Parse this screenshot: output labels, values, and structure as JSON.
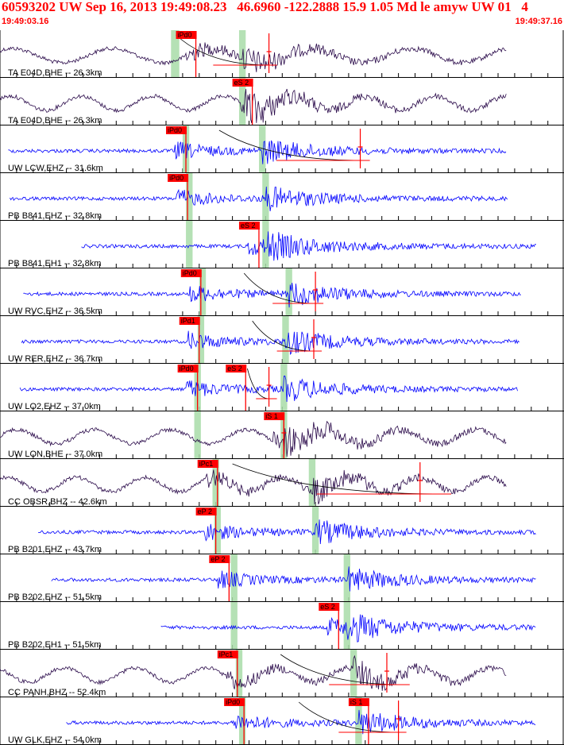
{
  "header": {
    "title": "60593202 UW Sep 16, 2013 19:49:08.23   46.6960 -122.2888 15.9 1.05 Md le amyw UW 01   4",
    "start_time": "19:49:03.16",
    "end_time": "19:49:37.16"
  },
  "colors": {
    "header_text": "#ff0000",
    "trace_short_period": "#0000ff",
    "trace_broadband": "#2a0a4a",
    "pick_box": "#ff0000",
    "pick_window": "#a8dca8",
    "coda_curve": "#000000",
    "grid": "#000000"
  },
  "chart_data": {
    "type": "seismogram",
    "time_window_s": [
      0,
      34
    ],
    "traces": [
      {
        "label": "TA E04D,BHE -- 26.3km",
        "dist_km": 26.3,
        "instrument": "broadband",
        "picks": [
          {
            "name": "iPd0",
            "t": 10.6
          }
        ],
        "windows": [
          [
            10.3,
            10.8
          ],
          [
            14.4,
            14.8
          ]
        ],
        "coda": {
          "start": 10.6,
          "end": 16.2
        },
        "amp_marker": 16.2
      },
      {
        "label": "TA E04D,BHE -- 26.3km",
        "dist_km": 26.3,
        "instrument": "broadband",
        "picks": [
          {
            "name": "eS 2",
            "t": 14.0
          }
        ],
        "windows": [
          [
            14.4,
            14.8
          ]
        ],
        "coda": null,
        "amp_marker": null
      },
      {
        "label": "UW LCW,EHZ -- 31.6km",
        "dist_km": 31.6,
        "instrument": "short-period",
        "picks": [
          {
            "name": "iPd0",
            "t": 10.0
          }
        ],
        "windows": [
          [
            11.0,
            11.4
          ],
          [
            15.6,
            16.0
          ]
        ],
        "coda": {
          "start": 13.2,
          "end": 21.8
        },
        "amp_marker": 21.7
      },
      {
        "label": "PB B841,EHZ -- 32.8km",
        "dist_km": 32.8,
        "instrument": "short-period",
        "picks": [
          {
            "name": "iPd0",
            "t": 10.1
          }
        ],
        "windows": [
          [
            11.2,
            11.6
          ],
          [
            15.8,
            16.2
          ]
        ],
        "coda": null,
        "amp_marker": null
      },
      {
        "label": "PB B841,EH1 -- 32.8km",
        "dist_km": 32.8,
        "instrument": "short-period",
        "picks": [
          {
            "name": "eS 2",
            "t": 14.4
          }
        ],
        "windows": [
          [
            11.2,
            11.6
          ],
          [
            15.8,
            16.2
          ]
        ],
        "coda": null,
        "amp_marker": null
      },
      {
        "label": "UW RVC,EHZ -- 36.5km",
        "dist_km": 36.5,
        "instrument": "short-period",
        "picks": [
          {
            "name": "iPd0",
            "t": 10.9
          }
        ],
        "windows": [
          [
            12.0,
            12.4
          ],
          [
            17.2,
            17.6
          ]
        ],
        "coda": {
          "start": 14.7,
          "end": 19.0
        },
        "amp_marker": 19.0
      },
      {
        "label": "UW RER,EHZ -- 36.7km",
        "dist_km": 36.7,
        "instrument": "short-period",
        "picks": [
          {
            "name": "iPd1",
            "t": 10.8
          }
        ],
        "windows": [
          [
            11.9,
            12.3
          ],
          [
            17.0,
            17.4
          ]
        ],
        "coda": {
          "start": 15.2,
          "end": 18.9
        },
        "amp_marker": 18.9
      },
      {
        "label": "UW LO2,EHZ -- 37.0km",
        "dist_km": 37.0,
        "instrument": "short-period",
        "picks": [
          {
            "name": "iPd0",
            "t": 10.7
          },
          {
            "name": "eS 2",
            "t": 13.6
          }
        ],
        "windows": [
          [
            11.7,
            12.1
          ],
          [
            16.9,
            17.3
          ]
        ],
        "coda": {
          "start": 14.9,
          "end": 16.2
        },
        "amp_marker": 16.2
      },
      {
        "label": "UW LON,BHE -- 37.0km",
        "dist_km": 37.0,
        "instrument": "broadband",
        "picks": [
          {
            "name": "iS 1",
            "t": 15.9
          }
        ],
        "windows": [
          [
            11.7,
            12.1
          ],
          [
            16.9,
            17.3
          ]
        ],
        "coda": null,
        "amp_marker": 17.1
      },
      {
        "label": "CC OBSR,BHZ -- 42.6km",
        "dist_km": 42.6,
        "instrument": "broadband",
        "picks": [
          {
            "name": "iPc1",
            "t": 11.9
          }
        ],
        "windows": [
          [
            12.8,
            13.2
          ],
          [
            18.6,
            19.0
          ]
        ],
        "coda": {
          "start": 14.0,
          "end": 26.7
        },
        "amp_marker": 25.3
      },
      {
        "label": "PB B201,EHZ -- 43.7km",
        "dist_km": 43.7,
        "instrument": "short-period",
        "picks": [
          {
            "name": "eP 2",
            "t": 11.8
          }
        ],
        "windows": [
          [
            12.9,
            13.3
          ],
          [
            18.8,
            19.2
          ]
        ],
        "coda": null,
        "amp_marker": null
      },
      {
        "label": "PB B202,EHZ -- 51.5km",
        "dist_km": 51.5,
        "instrument": "short-period",
        "picks": [
          {
            "name": "eP 2",
            "t": 12.6
          }
        ],
        "windows": [
          [
            13.9,
            14.3
          ],
          [
            20.7,
            21.1
          ]
        ],
        "coda": null,
        "amp_marker": null
      },
      {
        "label": "PB B202,EH1 -- 51.5km",
        "dist_km": 51.5,
        "instrument": "short-period",
        "picks": [
          {
            "name": "eS 2",
            "t": 19.2
          }
        ],
        "windows": [
          [
            13.9,
            14.3
          ],
          [
            20.7,
            21.1
          ]
        ],
        "coda": null,
        "amp_marker": null
      },
      {
        "label": "CC PANH,BHZ -- 52.4km",
        "dist_km": 52.4,
        "instrument": "broadband",
        "picks": [
          {
            "name": "iPc1",
            "t": 13.1
          }
        ],
        "windows": [
          [
            14.2,
            14.6
          ],
          [
            21.1,
            21.5
          ]
        ],
        "coda": {
          "start": 16.9,
          "end": 24.2
        },
        "amp_marker": 23.3
      },
      {
        "label": "UW GLK,EHZ -- 54.0km",
        "dist_km": 54.0,
        "instrument": "short-period",
        "picks": [
          {
            "name": "iPd0",
            "t": 13.5
          },
          {
            "name": "iS 1",
            "t": 21.0
          }
        ],
        "windows": [
          [
            14.4,
            14.8
          ],
          [
            21.4,
            21.8
          ]
        ],
        "coda": {
          "start": 18.0,
          "end": 24.0
        },
        "amp_marker": 24.0
      }
    ],
    "grid": true
  }
}
